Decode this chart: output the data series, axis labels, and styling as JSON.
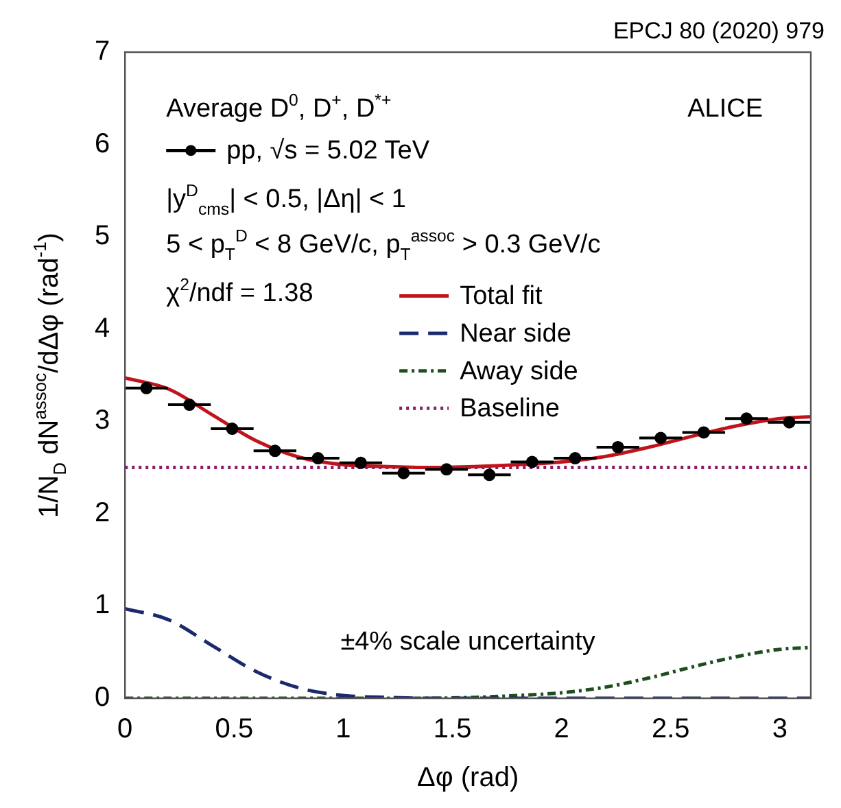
{
  "chart_data": {
    "type": "line",
    "xlabel": "Δφ (rad)",
    "ylabel": "1/N$_{D}$ dN$^{assoc}$/dΔφ (rad$^{-1}$)",
    "annotations": [
      "EPCJ 80 (2020) 979",
      "Average D$^{0}$, D$^{+}$, D$^{*+}$",
      "ALICE",
      "|y$^{D}$$_{cms}$| < 0.5, |Δη| < 1",
      "5 < p$_{T}$$^{D}$ < 8 GeV/c, p$_{T}$$^{assoc}$ > 0.3 GeV/c",
      "χ$^{2}$/ndf = 1.38",
      "±4% scale uncertainty"
    ],
    "series": [
      {
        "name": "pp, √s = 5.02 TeV",
        "type": "scatter",
        "color": "#000000",
        "marker": "circle",
        "x": [
          0.098,
          0.295,
          0.491,
          0.687,
          0.884,
          1.08,
          1.276,
          1.473,
          1.669,
          1.865,
          2.062,
          2.258,
          2.454,
          2.651,
          2.847,
          3.043
        ],
        "values": [
          3.36,
          3.18,
          2.92,
          2.68,
          2.6,
          2.55,
          2.44,
          2.48,
          2.42,
          2.56,
          2.6,
          2.72,
          2.82,
          2.88,
          3.03,
          2.99
        ],
        "xerrors": [
          0.098,
          0.098,
          0.098,
          0.098,
          0.098,
          0.098,
          0.098,
          0.098,
          0.098,
          0.098,
          0.098,
          0.098,
          0.098,
          0.098,
          0.098,
          0.098
        ]
      },
      {
        "name": "Total fit",
        "color": "#c0141c",
        "line_style": "solid",
        "x": [
          0,
          0.2,
          0.4,
          0.6,
          0.8,
          1.0,
          1.2,
          1.4,
          1.6,
          1.8,
          2.0,
          2.2,
          2.4,
          2.6,
          2.8,
          3.0,
          3.1416
        ],
        "values": [
          3.47,
          3.35,
          3.07,
          2.79,
          2.61,
          2.53,
          2.51,
          2.5,
          2.51,
          2.53,
          2.56,
          2.62,
          2.72,
          2.84,
          2.95,
          3.03,
          3.05
        ]
      },
      {
        "name": "Near side",
        "color": "#1a2a6c",
        "line_style": "dashed",
        "x": [
          0,
          0.2,
          0.4,
          0.6,
          0.8,
          1.0,
          1.2,
          1.4,
          3.1416
        ],
        "values": [
          0.97,
          0.85,
          0.57,
          0.29,
          0.11,
          0.03,
          0.01,
          0,
          0
        ]
      },
      {
        "name": "Away side",
        "color": "#1e4d1e",
        "line_style": "dashdot",
        "x": [
          0,
          1.4,
          1.6,
          1.8,
          2.0,
          2.2,
          2.4,
          2.6,
          2.8,
          3.0,
          3.1416
        ],
        "values": [
          0,
          0,
          0.01,
          0.03,
          0.06,
          0.12,
          0.22,
          0.34,
          0.45,
          0.53,
          0.55
        ]
      },
      {
        "name": "Baseline",
        "color": "#8b1a6b",
        "line_style": "dotted",
        "x": [
          0,
          3.1416
        ],
        "values": [
          2.5,
          2.5
        ]
      }
    ],
    "xlim": [
      0,
      3.1416
    ],
    "xticks": [
      0,
      0.5,
      1,
      1.5,
      2,
      2.5,
      3
    ],
    "ylim": [
      0,
      7
    ],
    "yticks": [
      0,
      1,
      2,
      3,
      4,
      5,
      6,
      7
    ],
    "grid": false,
    "legend": "top left"
  }
}
